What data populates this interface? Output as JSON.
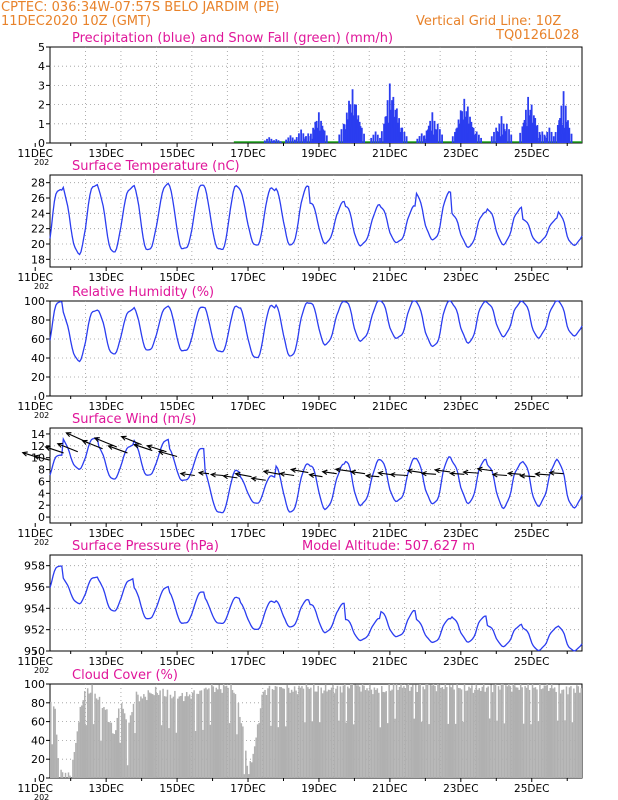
{
  "header": {
    "line1_left": "CPTEC:   036:34W-07:57S   BELO JARDIM (PE)",
    "line2_left": "11DEC2020  10Z (GMT)",
    "line1_right": "Vertical Grid Line: 10Z",
    "line2_right": "TQ0126L028"
  },
  "colors": {
    "series": "#2b3df0",
    "snow": "#1fa51f",
    "title": "#e0169a",
    "header": "#e8822a",
    "grid": "#9a9a9a",
    "cloud": "#b0b0b0"
  },
  "time_axis": {
    "start": "11DEC2020 10Z",
    "tick_labels": [
      "11DEC",
      "13DEC",
      "15DEC",
      "17DEC",
      "19DEC",
      "21DEC",
      "23DEC",
      "25DEC"
    ],
    "year_label": "202"
  },
  "chart_data": [
    {
      "type": "bar",
      "title": "Precipitation (blue) and Snow Fall (green) (mm/h)",
      "ylim": [
        0,
        5
      ],
      "yticks": [
        0,
        1,
        2,
        3,
        4,
        5
      ],
      "series": [
        {
          "name": "Precipitation",
          "events": [
            [
              17.6,
              0.3
            ],
            [
              17.8,
              0.2
            ],
            [
              18.2,
              0.4
            ],
            [
              18.5,
              0.7
            ],
            [
              18.7,
              0.5
            ],
            [
              18.9,
              1.1
            ],
            [
              19.0,
              1.6
            ],
            [
              19.1,
              0.9
            ],
            [
              19.7,
              1.0
            ],
            [
              19.85,
              2.2
            ],
            [
              19.95,
              2.8
            ],
            [
              20.05,
              2.0
            ],
            [
              20.15,
              1.1
            ],
            [
              20.6,
              0.6
            ],
            [
              20.9,
              1.4
            ],
            [
              21.0,
              3.1
            ],
            [
              21.1,
              2.4
            ],
            [
              21.2,
              1.8
            ],
            [
              21.35,
              0.8
            ],
            [
              21.9,
              0.5
            ],
            [
              22.1,
              0.9
            ],
            [
              22.2,
              1.6
            ],
            [
              22.35,
              1.0
            ],
            [
              22.9,
              0.8
            ],
            [
              23.0,
              1.7
            ],
            [
              23.1,
              2.3
            ],
            [
              23.2,
              1.9
            ],
            [
              23.3,
              1.1
            ],
            [
              23.45,
              0.6
            ],
            [
              24.0,
              0.8
            ],
            [
              24.15,
              1.4
            ],
            [
              24.3,
              1.0
            ],
            [
              24.8,
              1.2
            ],
            [
              24.9,
              2.4
            ],
            [
              25.0,
              2.0
            ],
            [
              25.1,
              1.3
            ],
            [
              25.3,
              0.6
            ],
            [
              25.5,
              0.8
            ],
            [
              25.8,
              1.3
            ],
            [
              25.9,
              2.7
            ],
            [
              26.0,
              1.1
            ]
          ]
        },
        {
          "name": "Snow Fall",
          "values": []
        }
      ]
    },
    {
      "type": "line",
      "title": "Surface Temperature (nC)",
      "ylim": [
        17,
        29
      ],
      "yticks": [
        18,
        20,
        22,
        24,
        26,
        28
      ],
      "series": [
        {
          "name": "Temperature",
          "peaks": [
            27.2,
            28.0,
            27.6,
            27.8,
            27.6,
            27.5,
            27.4,
            27.8,
            25.6,
            25.0,
            24.8,
            26.7,
            24.2,
            24.8,
            23.3,
            24.1,
            23.6,
            23.8,
            26.5
          ],
          "troughs": [
            17.8,
            18.9,
            19.1,
            19.2,
            19.1,
            19.0,
            19.8,
            20.0,
            20.2,
            19.8,
            20.1,
            20.5,
            19.7,
            20.1,
            20.2,
            19.8,
            20.3,
            20.6,
            20.4
          ]
        }
      ]
    },
    {
      "type": "line",
      "title": "Relative Humidity (%)",
      "ylim": [
        0,
        100
      ],
      "yticks": [
        0,
        20,
        40,
        60,
        80,
        100
      ],
      "series": [
        {
          "name": "Relative Humidity",
          "peaks": [
            100,
            92,
            92,
            94,
            93,
            94,
            96,
            100,
            100,
            100,
            100,
            100,
            100,
            100,
            100,
            100,
            100,
            100,
            100
          ],
          "troughs": [
            40,
            38,
            45,
            48,
            46,
            45,
            40,
            43,
            55,
            58,
            60,
            52,
            57,
            64,
            62,
            63,
            66,
            58,
            54
          ]
        }
      ]
    },
    {
      "type": "line",
      "title": "Surface Wind (m/s)",
      "ylim": [
        -1,
        15
      ],
      "yticks": [
        0,
        2,
        4,
        6,
        8,
        10,
        12,
        14
      ],
      "series": [
        {
          "name": "Wind Speed",
          "peaks": [
            10.5,
            13.5,
            12.2,
            13.0,
            11.5,
            7.8,
            7.0,
            9.2,
            9.0,
            9.5,
            9.6,
            10.0,
            9.8,
            9.2,
            9.5,
            9.3,
            8.6,
            9.8,
            9.5
          ],
          "troughs": [
            5.5,
            8.2,
            6.5,
            7.0,
            6.0,
            0.5,
            2.3,
            1.0,
            1.5,
            2.0,
            2.5,
            2.2,
            2.5,
            1.8,
            2.0,
            1.5,
            1.8,
            2.0,
            2.5
          ]
        }
      ],
      "arrows": [
        [
          11.1,
          10.0,
          -16,
          -5
        ],
        [
          11.4,
          9.6,
          -15,
          -4
        ],
        [
          11.8,
          10.8,
          -18,
          -6
        ],
        [
          12.2,
          11.0,
          -20,
          -8
        ],
        [
          12.5,
          12.5,
          -22,
          -10
        ],
        [
          12.9,
          11.5,
          -20,
          -8
        ],
        [
          13.3,
          11.8,
          -22,
          -9
        ],
        [
          13.6,
          10.8,
          -19,
          -7
        ],
        [
          14.0,
          12.2,
          -20,
          -8
        ],
        [
          14.3,
          11.2,
          -18,
          -6
        ],
        [
          14.7,
          11.0,
          -19,
          -6
        ],
        [
          15.0,
          10.2,
          -18,
          -5
        ],
        [
          15.5,
          7.0,
          -14,
          -2
        ],
        [
          15.9,
          7.3,
          -10,
          -1
        ],
        [
          16.3,
          7.0,
          -12,
          -1
        ],
        [
          16.7,
          6.6,
          -14,
          -2
        ],
        [
          17.1,
          6.8,
          -16,
          -3
        ],
        [
          17.5,
          6.2,
          -14,
          -2
        ],
        [
          17.9,
          7.2,
          -16,
          -3
        ],
        [
          18.3,
          7.0,
          -14,
          -2
        ],
        [
          18.7,
          7.5,
          -17,
          -3
        ],
        [
          19.1,
          6.8,
          -13,
          -2
        ],
        [
          19.5,
          7.3,
          -14,
          -2
        ],
        [
          19.9,
          7.7,
          -15,
          -2
        ],
        [
          20.3,
          7.3,
          -14,
          -2
        ],
        [
          20.7,
          6.8,
          -13,
          -1
        ],
        [
          21.1,
          7.1,
          -15,
          -2
        ],
        [
          21.5,
          7.0,
          -17,
          -1
        ],
        [
          21.9,
          7.5,
          -14,
          -2
        ],
        [
          22.3,
          7.2,
          -14,
          -1
        ],
        [
          22.7,
          7.6,
          -15,
          -2
        ],
        [
          23.1,
          7.2,
          -14,
          -1
        ],
        [
          23.5,
          7.4,
          -15,
          -1
        ],
        [
          23.9,
          7.8,
          -15,
          -2
        ],
        [
          24.3,
          7.0,
          -14,
          -1
        ],
        [
          24.7,
          7.2,
          -13,
          -1
        ],
        [
          25.1,
          6.8,
          -15,
          -1
        ],
        [
          25.5,
          7.1,
          -14,
          -1
        ],
        [
          25.9,
          7.3,
          -14,
          -1
        ]
      ]
    },
    {
      "type": "line",
      "title": "Surface Pressure (hPa)",
      "extra": "Model Altitude: 507.627 m",
      "ylim": [
        950,
        959
      ],
      "yticks": [
        950,
        952,
        954,
        956,
        958
      ],
      "series": [
        {
          "name": "Pressure",
          "peaks": [
            958.0,
            957.0,
            956.8,
            956.0,
            955.5,
            955.0,
            954.7,
            954.9,
            954.5,
            953.0,
            953.7,
            953.0,
            953.3,
            952.5,
            952.2,
            952.3,
            951.8,
            952.2,
            951.5
          ],
          "troughs": [
            955.0,
            954.5,
            953.8,
            953.0,
            952.5,
            952.5,
            952.0,
            952.3,
            951.8,
            951.0,
            951.3,
            950.8,
            950.9,
            950.5,
            950.1,
            950.0,
            949.6,
            949.9,
            950.1
          ]
        }
      ]
    },
    {
      "type": "bar",
      "title": "Cloud Cover (%)",
      "ylim": [
        0,
        100
      ],
      "yticks": [
        0,
        20,
        40,
        60,
        80,
        100
      ],
      "series": [
        {
          "name": "Cloud Cover",
          "profile": [
            [
              11.0,
              92
            ],
            [
              11.3,
              88
            ],
            [
              11.55,
              70
            ],
            [
              11.65,
              5
            ],
            [
              12.0,
              3
            ],
            [
              12.2,
              60
            ],
            [
              12.35,
              90
            ],
            [
              12.6,
              95
            ],
            [
              12.8,
              80
            ],
            [
              13.0,
              70
            ],
            [
              13.2,
              45
            ],
            [
              13.4,
              82
            ],
            [
              13.6,
              52
            ],
            [
              13.8,
              88
            ],
            [
              14.0,
              85
            ],
            [
              14.2,
              90
            ],
            [
              14.5,
              92
            ],
            [
              14.8,
              88
            ],
            [
              15.0,
              86
            ],
            [
              15.3,
              88
            ],
            [
              15.6,
              90
            ],
            [
              15.9,
              96
            ],
            [
              16.2,
              95
            ],
            [
              16.4,
              98
            ],
            [
              16.6,
              93
            ],
            [
              16.8,
              60
            ],
            [
              17.0,
              5
            ],
            [
              17.2,
              40
            ],
            [
              17.4,
              92
            ],
            [
              17.7,
              95
            ],
            [
              18.0,
              95
            ],
            [
              18.3,
              93
            ],
            [
              18.6,
              98
            ],
            [
              18.9,
              95
            ],
            [
              19.1,
              94
            ],
            [
              19.3,
              95
            ],
            [
              19.6,
              96
            ],
            [
              19.9,
              98
            ],
            [
              20.2,
              97
            ],
            [
              20.5,
              94
            ],
            [
              20.8,
              92
            ],
            [
              21.1,
              98
            ],
            [
              21.4,
              98
            ],
            [
              21.8,
              97
            ],
            [
              22.2,
              98
            ],
            [
              22.6,
              97
            ],
            [
              23.0,
              96
            ],
            [
              23.4,
              95
            ],
            [
              23.8,
              97
            ],
            [
              24.2,
              98
            ],
            [
              24.6,
              97
            ],
            [
              25.0,
              96
            ],
            [
              25.4,
              98
            ],
            [
              25.8,
              94
            ],
            [
              26.0,
              95
            ]
          ]
        }
      ]
    }
  ]
}
